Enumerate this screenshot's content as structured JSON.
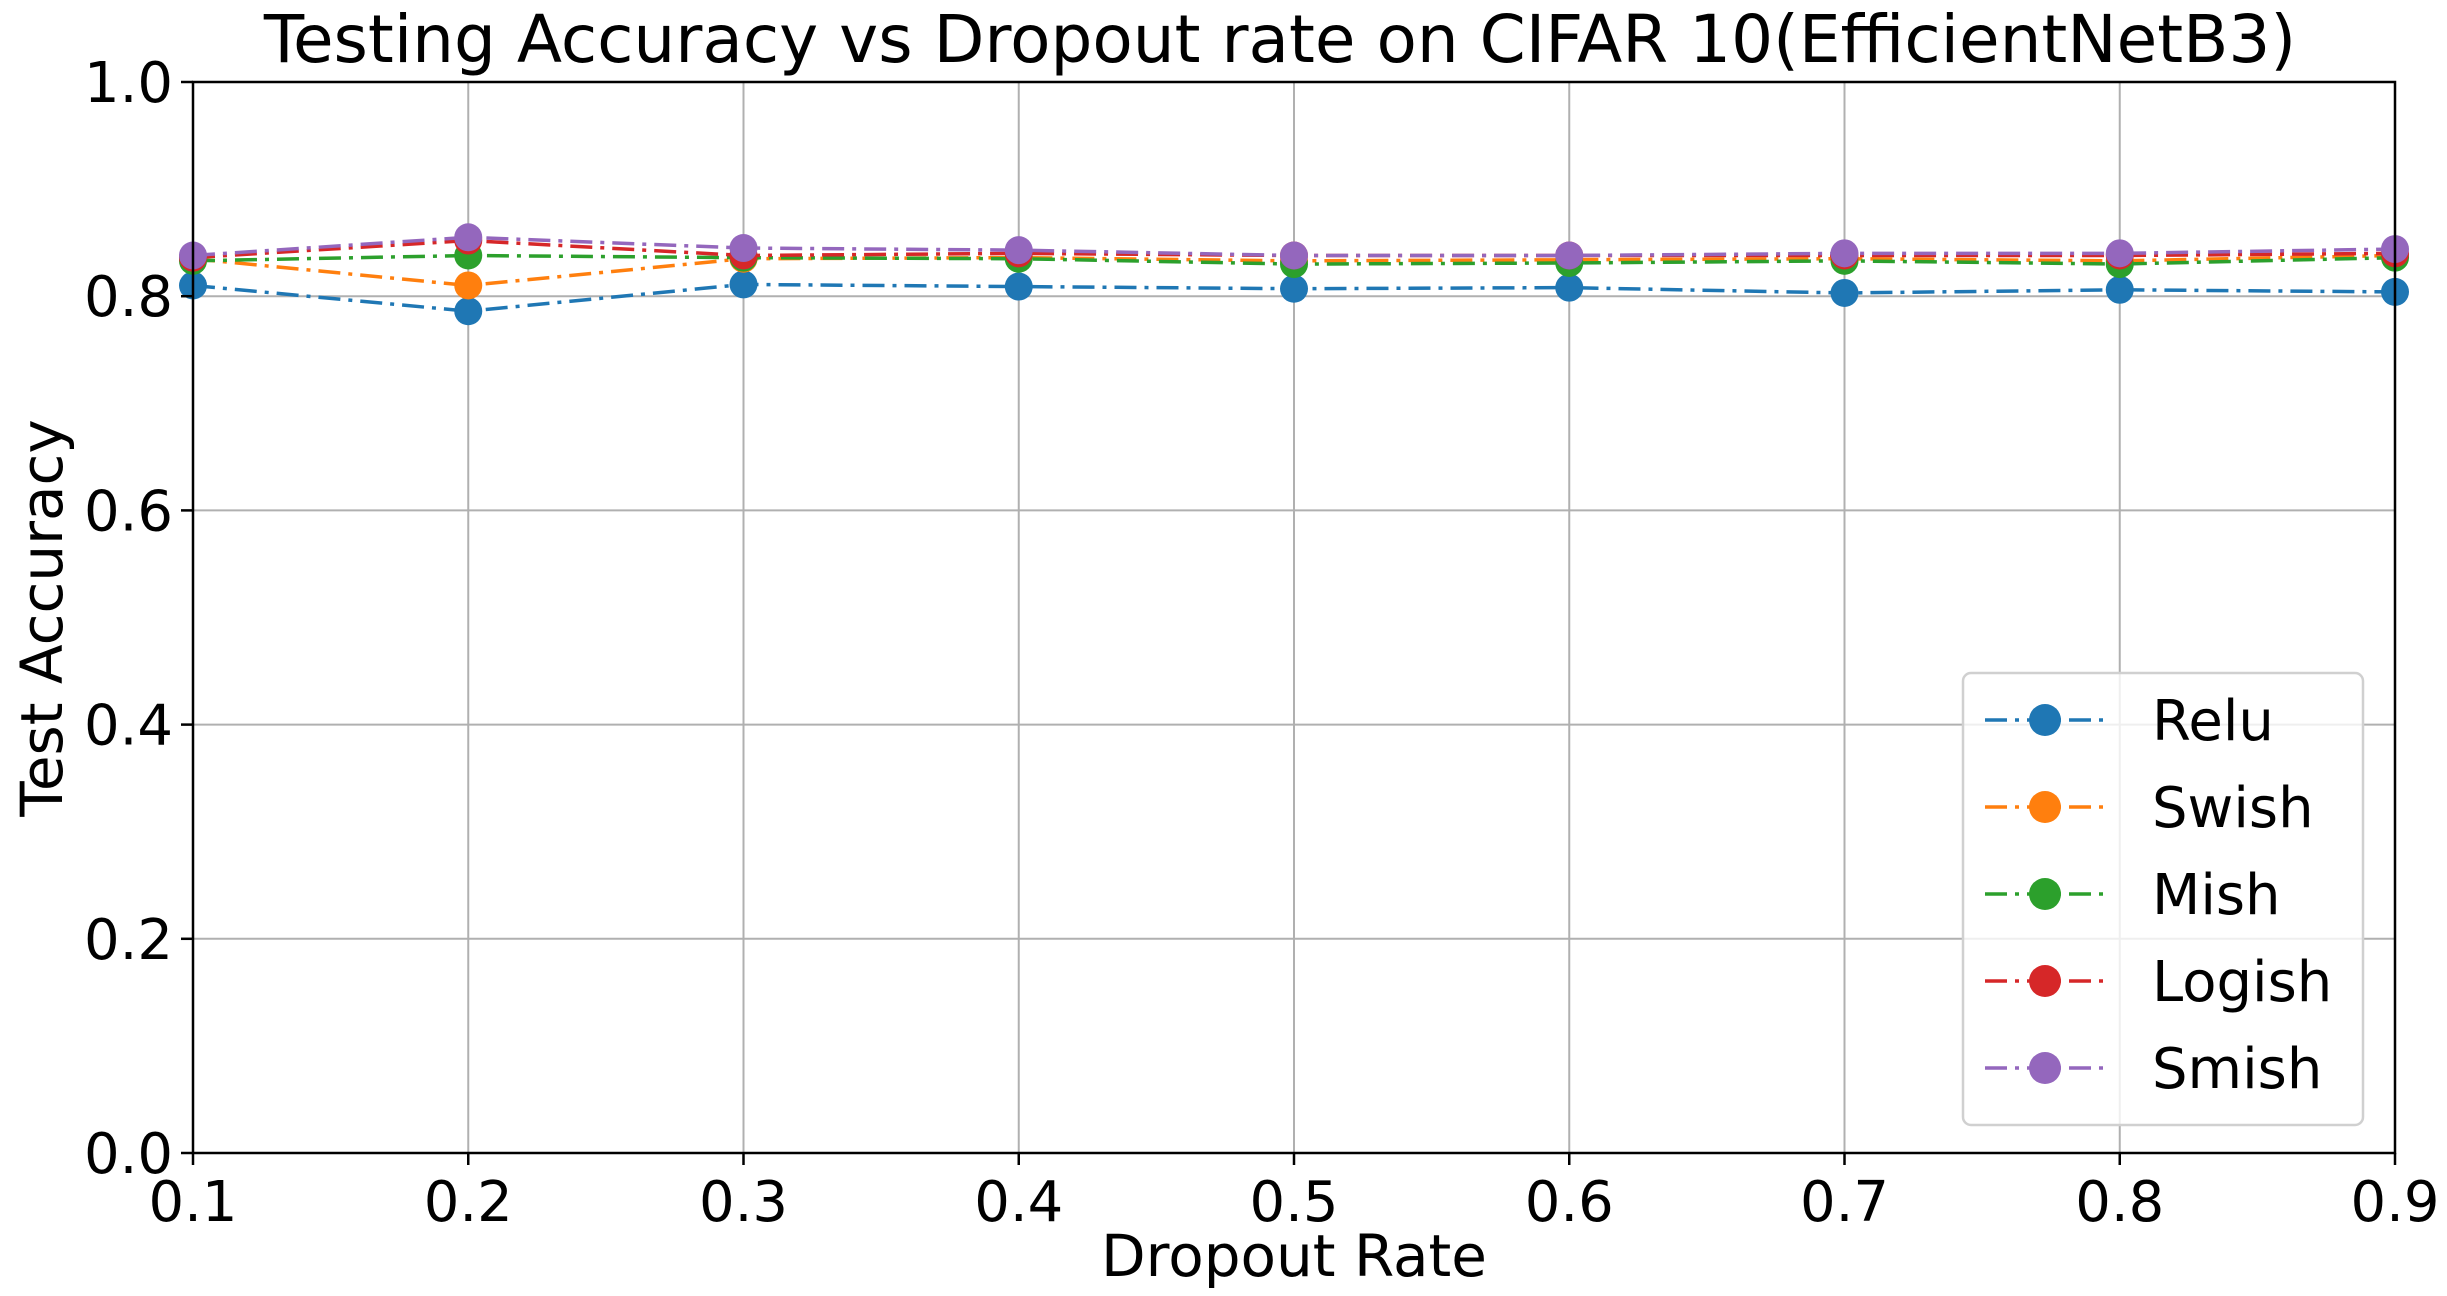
{
  "chart_data": {
    "type": "line",
    "title": "Testing Accuracy vs Dropout rate on CIFAR 10(EfficientNetB3)",
    "xlabel": "Dropout Rate",
    "ylabel": "Test Accuracy",
    "xlim": [
      0.1,
      0.9
    ],
    "ylim": [
      0.0,
      1.0
    ],
    "grid": true,
    "legend_position": "lower-right",
    "line_style": "dash-dot with circle markers",
    "x_ticks": [
      "0.1",
      "0.2",
      "0.3",
      "0.4",
      "0.5",
      "0.6",
      "0.7",
      "0.8",
      "0.9"
    ],
    "y_ticks": [
      "0.0",
      "0.2",
      "0.4",
      "0.6",
      "0.8",
      "1.0"
    ],
    "x": [
      0.1,
      0.2,
      0.3,
      0.4,
      0.5,
      0.6,
      0.7,
      0.8,
      0.9
    ],
    "series": [
      {
        "name": "Relu",
        "color": "#1f77b4",
        "values": [
          0.81,
          0.786,
          0.811,
          0.809,
          0.807,
          0.808,
          0.803,
          0.806,
          0.804
        ]
      },
      {
        "name": "Swish",
        "color": "#ff7f0e",
        "values": [
          0.835,
          0.81,
          0.835,
          0.836,
          0.833,
          0.834,
          0.835,
          0.833,
          0.838
        ]
      },
      {
        "name": "Mish",
        "color": "#2ca02c",
        "values": [
          0.833,
          0.838,
          0.836,
          0.835,
          0.83,
          0.831,
          0.833,
          0.83,
          0.836
        ]
      },
      {
        "name": "Logish",
        "color": "#d62728",
        "values": [
          0.836,
          0.852,
          0.838,
          0.84,
          0.838,
          0.838,
          0.838,
          0.838,
          0.84
        ]
      },
      {
        "name": "Smish",
        "color": "#9467bd",
        "values": [
          0.838,
          0.855,
          0.845,
          0.843,
          0.838,
          0.838,
          0.84,
          0.84,
          0.844
        ]
      }
    ]
  }
}
